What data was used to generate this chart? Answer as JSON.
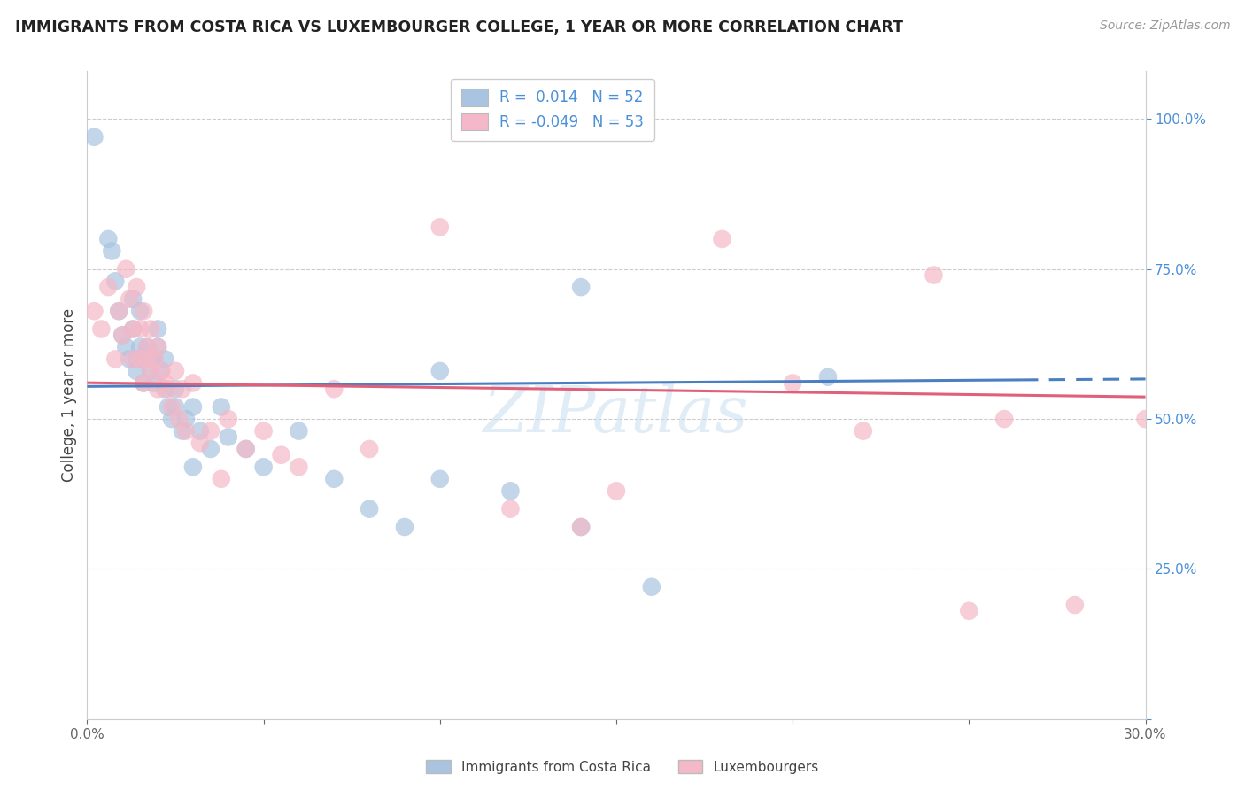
{
  "title": "IMMIGRANTS FROM COSTA RICA VS LUXEMBOURGER COLLEGE, 1 YEAR OR MORE CORRELATION CHART",
  "source_text": "Source: ZipAtlas.com",
  "ylabel": "College, 1 year or more",
  "xlim": [
    0.0,
    0.3
  ],
  "ylim": [
    0.0,
    1.08
  ],
  "xticks": [
    0.0,
    0.05,
    0.1,
    0.15,
    0.2,
    0.25,
    0.3
  ],
  "xticklabels": [
    "0.0%",
    "",
    "",
    "",
    "",
    "",
    "30.0%"
  ],
  "yticks": [
    0.0,
    0.25,
    0.5,
    0.75,
    1.0
  ],
  "yticklabels": [
    "",
    "25.0%",
    "50.0%",
    "75.0%",
    "100.0%"
  ],
  "legend_labels": [
    "Immigrants from Costa Rica",
    "Luxembourgers"
  ],
  "blue_r": 0.014,
  "blue_n": 52,
  "pink_r": -0.049,
  "pink_n": 53,
  "blue_color": "#a8c4e0",
  "pink_color": "#f4b8c8",
  "blue_line_color": "#4a7fc1",
  "pink_line_color": "#e0607a",
  "grid_color": "#cccccc",
  "title_color": "#222222",
  "tick_color": "#666666",
  "right_tick_color": "#4a90d9",
  "watermark_color": "#c8ddf0",
  "background_color": "#ffffff",
  "blue_x": [
    0.002,
    0.006,
    0.007,
    0.008,
    0.009,
    0.01,
    0.011,
    0.012,
    0.013,
    0.013,
    0.014,
    0.014,
    0.015,
    0.015,
    0.016,
    0.016,
    0.017,
    0.017,
    0.018,
    0.018,
    0.019,
    0.019,
    0.02,
    0.02,
    0.021,
    0.022,
    0.022,
    0.023,
    0.024,
    0.025,
    0.025,
    0.027,
    0.028,
    0.03,
    0.032,
    0.035,
    0.038,
    0.04,
    0.045,
    0.05,
    0.06,
    0.07,
    0.08,
    0.09,
    0.1,
    0.12,
    0.14,
    0.16,
    0.21,
    0.14,
    0.1,
    0.03
  ],
  "blue_y": [
    0.97,
    0.8,
    0.78,
    0.73,
    0.68,
    0.64,
    0.62,
    0.6,
    0.65,
    0.7,
    0.6,
    0.58,
    0.62,
    0.68,
    0.6,
    0.56,
    0.62,
    0.6,
    0.58,
    0.6,
    0.56,
    0.6,
    0.65,
    0.62,
    0.58,
    0.55,
    0.6,
    0.52,
    0.5,
    0.55,
    0.52,
    0.48,
    0.5,
    0.52,
    0.48,
    0.45,
    0.52,
    0.47,
    0.45,
    0.42,
    0.48,
    0.4,
    0.35,
    0.32,
    0.4,
    0.38,
    0.32,
    0.22,
    0.57,
    0.72,
    0.58,
    0.42
  ],
  "pink_x": [
    0.002,
    0.004,
    0.006,
    0.008,
    0.009,
    0.01,
    0.011,
    0.012,
    0.013,
    0.013,
    0.014,
    0.015,
    0.015,
    0.016,
    0.016,
    0.017,
    0.017,
    0.018,
    0.018,
    0.019,
    0.02,
    0.02,
    0.021,
    0.022,
    0.023,
    0.024,
    0.025,
    0.026,
    0.027,
    0.028,
    0.03,
    0.032,
    0.035,
    0.038,
    0.04,
    0.045,
    0.05,
    0.055,
    0.06,
    0.07,
    0.08,
    0.1,
    0.12,
    0.15,
    0.18,
    0.2,
    0.22,
    0.24,
    0.26,
    0.28,
    0.3,
    0.14,
    0.25
  ],
  "pink_y": [
    0.68,
    0.65,
    0.72,
    0.6,
    0.68,
    0.64,
    0.75,
    0.7,
    0.65,
    0.6,
    0.72,
    0.65,
    0.6,
    0.68,
    0.56,
    0.62,
    0.6,
    0.65,
    0.58,
    0.6,
    0.55,
    0.62,
    0.58,
    0.56,
    0.55,
    0.52,
    0.58,
    0.5,
    0.55,
    0.48,
    0.56,
    0.46,
    0.48,
    0.4,
    0.5,
    0.45,
    0.48,
    0.44,
    0.42,
    0.55,
    0.45,
    0.82,
    0.35,
    0.38,
    0.8,
    0.56,
    0.48,
    0.74,
    0.5,
    0.19,
    0.5,
    0.32,
    0.18
  ]
}
